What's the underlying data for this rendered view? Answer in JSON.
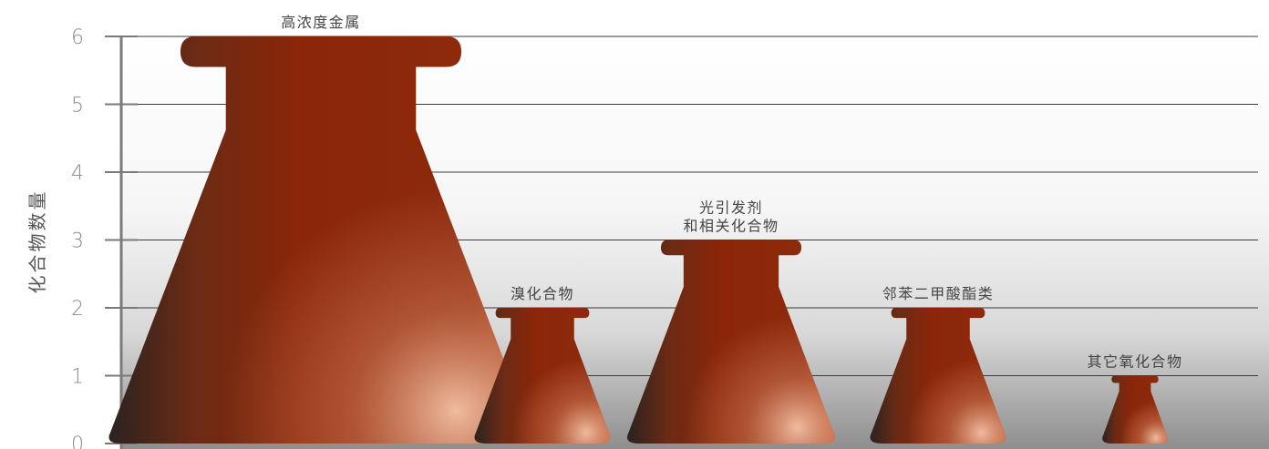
{
  "chart_data": {
    "type": "bar",
    "ylabel": "化合物数量",
    "xlabel": "",
    "title": "",
    "ylim": [
      0,
      6
    ],
    "yticks": [
      "0",
      "1",
      "2",
      "3",
      "4",
      "5",
      "6"
    ],
    "grid": true,
    "categories": [
      [
        "高浓度金属"
      ],
      [
        "溴化合物"
      ],
      [
        "光引发剂",
        "和相关化合物"
      ],
      [
        "邻苯二甲酸酯类"
      ],
      [
        "其它氧化合物"
      ]
    ],
    "values": [
      6,
      2,
      3,
      2,
      1
    ],
    "colors": {
      "bar_dark": "#2b2320",
      "bar_main": "#8b2609",
      "bar_light": "#f0b9a0",
      "axis": "#7a7a7a",
      "grid": "#3a3a3a"
    }
  }
}
